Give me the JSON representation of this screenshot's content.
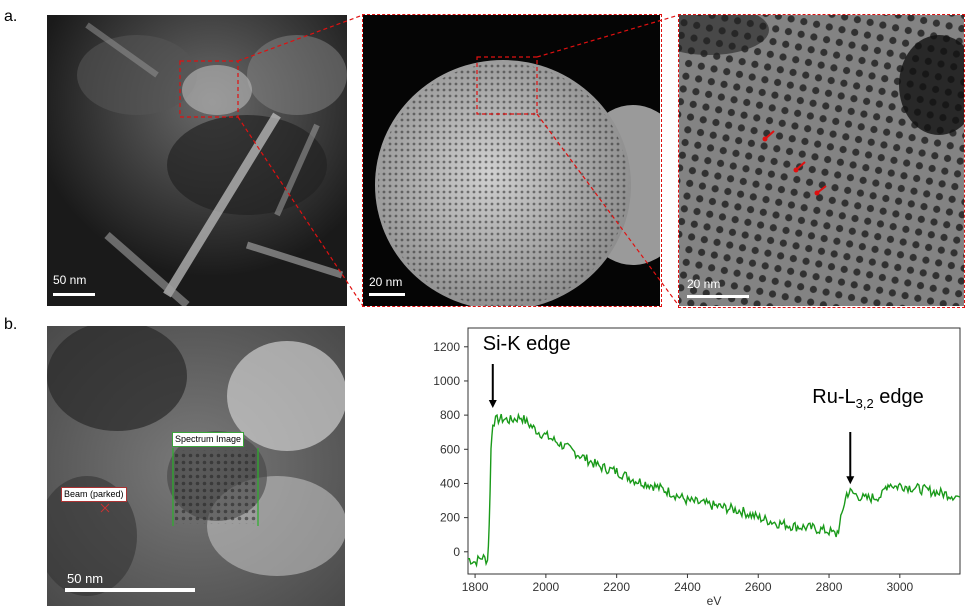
{
  "panel_a": {
    "label": "a.",
    "images": [
      {
        "scale_label": "50 nm"
      },
      {
        "scale_label": "20 nm"
      },
      {
        "scale_label": "20 nm"
      }
    ]
  },
  "panel_b": {
    "label": "b.",
    "image": {
      "scale_label": "50  nm",
      "spectrum_image_label": "Spectrum Image",
      "beam_label": "Beam (parked)"
    }
  },
  "colors": {
    "zoom_frame": "#e01010",
    "spectrum_line": "#1a9a1a",
    "spectrum_box": "#3aa53a"
  },
  "chart_data": {
    "type": "line",
    "xlabel": "eV",
    "ylabel": "",
    "xlim": [
      1780,
      3170
    ],
    "ylim": [
      -130,
      1310
    ],
    "x_ticks": [
      "1800",
      "2000",
      "2200",
      "2400",
      "2600",
      "2800",
      "3000"
    ],
    "y_ticks": [
      "0",
      "200",
      "400",
      "600",
      "800",
      "1000",
      "1200"
    ],
    "grid": false,
    "annotations": [
      {
        "text": "Si-K edge",
        "x": 1850,
        "y": 830
      },
      {
        "text": "Ru-L",
        "sub": "3,2",
        "suffix": " edge",
        "x": 2860,
        "y": 360
      }
    ],
    "series": [
      {
        "x": [
          1780,
          1800,
          1820,
          1835,
          1840,
          1845,
          1850,
          1870,
          1900,
          1930,
          1950,
          1980,
          2000,
          2050,
          2100,
          2150,
          2200,
          2250,
          2300,
          2350,
          2400,
          2450,
          2500,
          2550,
          2600,
          2650,
          2700,
          2750,
          2800,
          2820,
          2830,
          2840,
          2850,
          2860,
          2880,
          2900,
          2930,
          2950,
          2960,
          2970,
          2990,
          3000,
          3050,
          3100,
          3150,
          3170
        ],
        "y": [
          -40,
          -60,
          -30,
          -50,
          150,
          600,
          760,
          780,
          770,
          790,
          750,
          700,
          680,
          620,
          560,
          500,
          470,
          420,
          390,
          350,
          300,
          280,
          260,
          240,
          200,
          170,
          150,
          140,
          120,
          100,
          150,
          260,
          340,
          350,
          330,
          310,
          320,
          330,
          380,
          400,
          380,
          390,
          370,
          350,
          330,
          320
        ]
      }
    ]
  }
}
